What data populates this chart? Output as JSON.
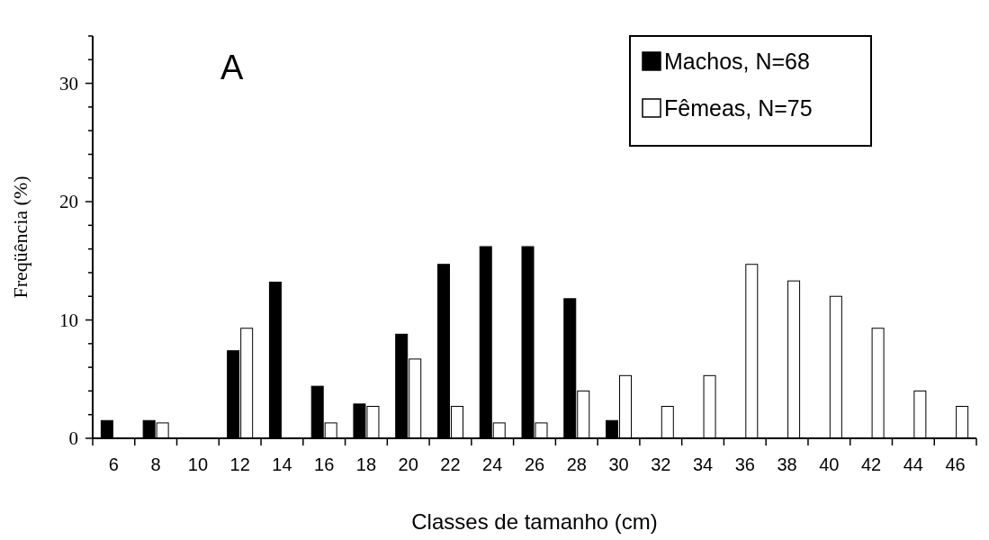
{
  "chart_data": {
    "type": "bar",
    "title": "A",
    "xlabel": "Classes de tamanho (cm)",
    "ylabel": "Freqüência (%)",
    "categories": [
      "6",
      "8",
      "10",
      "12",
      "14",
      "16",
      "18",
      "20",
      "22",
      "24",
      "26",
      "28",
      "30",
      "32",
      "34",
      "36",
      "38",
      "40",
      "42",
      "44",
      "46"
    ],
    "series": [
      {
        "name": "Machos, N=68",
        "color": "#000000",
        "values": [
          1.5,
          1.5,
          0,
          7.4,
          13.2,
          4.4,
          2.9,
          8.8,
          14.7,
          16.2,
          16.2,
          11.8,
          1.5,
          0,
          0,
          0,
          0,
          0,
          0,
          0,
          0
        ]
      },
      {
        "name": "Fêmeas, N=75",
        "color": "#ffffff",
        "values": [
          0,
          1.3,
          0,
          9.3,
          0,
          1.3,
          2.7,
          6.7,
          2.7,
          1.3,
          1.3,
          4.0,
          5.3,
          2.7,
          5.3,
          14.7,
          13.3,
          12.0,
          9.3,
          4.0,
          2.7
        ]
      }
    ],
    "ylim": [
      0,
      34
    ],
    "yticks": [
      0,
      {
        "value": 2,
        "label": null
      },
      {
        "value": 4,
        "label": null
      },
      {
        "value": 6,
        "label": null
      },
      {
        "value": 8,
        "label": null
      },
      10,
      {
        "value": 12,
        "label": null
      },
      {
        "value": 14,
        "label": null
      },
      {
        "value": 16,
        "label": null
      },
      {
        "value": 18,
        "label": null
      },
      20,
      {
        "value": 22,
        "label": null
      },
      {
        "value": 24,
        "label": null
      },
      {
        "value": 26,
        "label": null
      },
      {
        "value": 28,
        "label": null
      },
      30,
      {
        "value": 32,
        "label": null
      },
      {
        "value": 34,
        "label": null
      }
    ],
    "grid": false,
    "legend": "top right"
  }
}
